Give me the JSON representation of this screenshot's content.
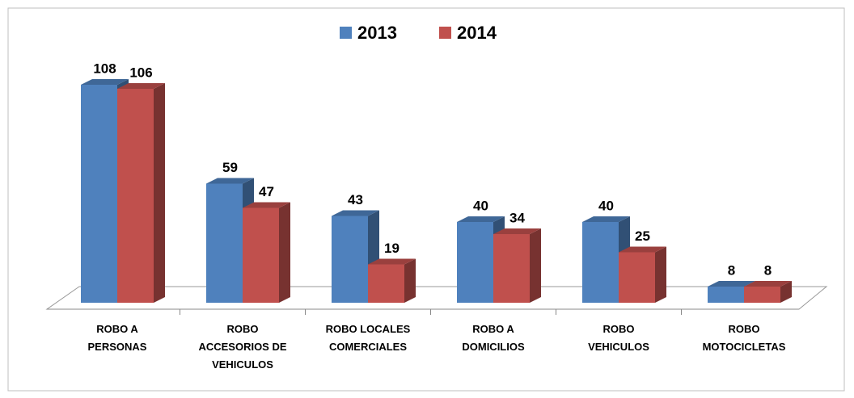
{
  "chart_data": {
    "type": "bar3d",
    "categories": [
      "ROBO A\nPERSONAS",
      "ROBO\nACCESORIOS DE\nVEHICULOS",
      "ROBO LOCALES\nCOMERCIALES",
      "ROBO A\nDOMICILIOS",
      "ROBO\nVEHICULOS",
      "ROBO\nMOTOCICLETAS"
    ],
    "series": [
      {
        "name": "2013",
        "color": "#4f81bd",
        "values": [
          108,
          59,
          43,
          40,
          40,
          8
        ]
      },
      {
        "name": "2014",
        "color": "#c0504d",
        "values": [
          106,
          47,
          19,
          34,
          25,
          8
        ]
      }
    ],
    "legend": "top"
  }
}
